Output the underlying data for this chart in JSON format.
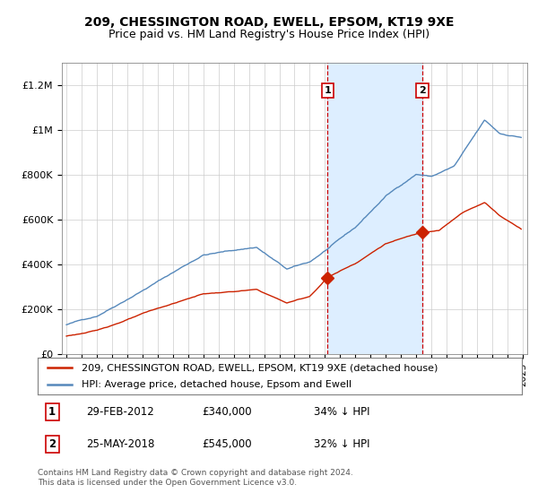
{
  "title": "209, CHESSINGTON ROAD, EWELL, EPSOM, KT19 9XE",
  "subtitle": "Price paid vs. HM Land Registry's House Price Index (HPI)",
  "ylim": [
    0,
    1300000
  ],
  "yticks": [
    0,
    200000,
    400000,
    600000,
    800000,
    1000000,
    1200000
  ],
  "ytick_labels": [
    "£0",
    "£200K",
    "£400K",
    "£600K",
    "£800K",
    "£1M",
    "£1.2M"
  ],
  "sale1_date": 2012.17,
  "sale1_price": 340000,
  "sale1_label": "1",
  "sale1_text": "29-FEB-2012",
  "sale1_amount": "£340,000",
  "sale1_pct": "34% ↓ HPI",
  "sale2_date": 2018.4,
  "sale2_price": 545000,
  "sale2_label": "2",
  "sale2_text": "25-MAY-2018",
  "sale2_amount": "£545,000",
  "sale2_pct": "32% ↓ HPI",
  "hpi_color": "#5588bb",
  "price_color": "#cc2200",
  "vline_color": "#cc0000",
  "shade_color": "#ddeeff",
  "legend_line1": "209, CHESSINGTON ROAD, EWELL, EPSOM, KT19 9XE (detached house)",
  "legend_line2": "HPI: Average price, detached house, Epsom and Ewell",
  "footer": "Contains HM Land Registry data © Crown copyright and database right 2024.\nThis data is licensed under the Open Government Licence v3.0.",
  "title_fontsize": 10,
  "subtitle_fontsize": 9,
  "tick_fontsize": 8
}
